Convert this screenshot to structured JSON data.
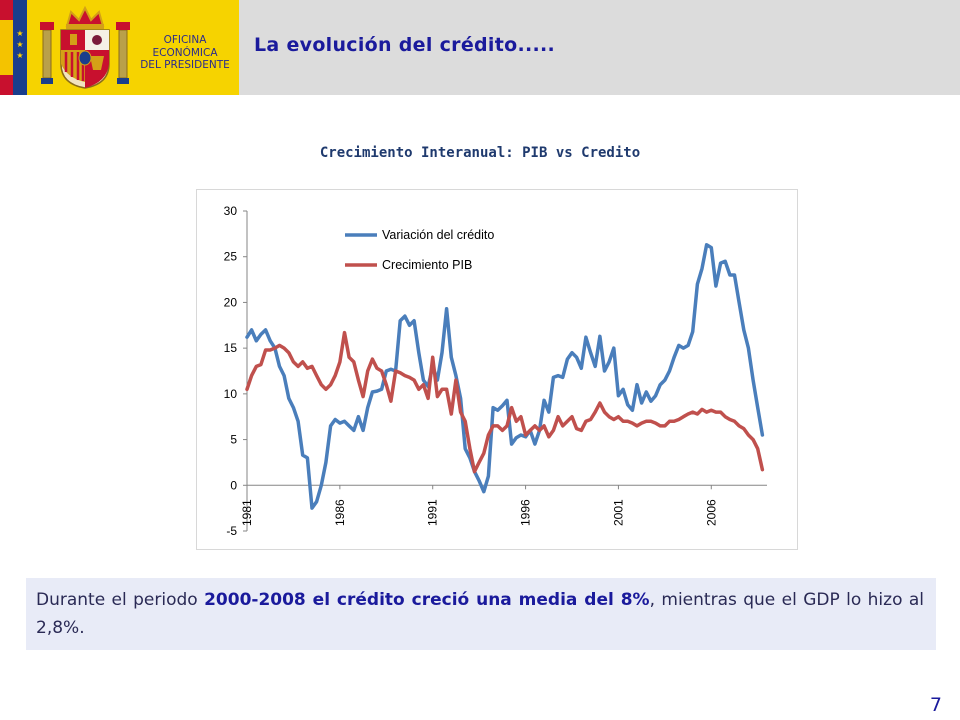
{
  "header": {
    "office_line1": "OFICINA",
    "office_line2": "ECONÓMICA",
    "office_line3": "DEL PRESIDENTE",
    "title": "La evolución del crédito.....",
    "logo": "spanish-coat-of-arms",
    "flag_colors": [
      "#c8102e",
      "#f4c300",
      "#c8102e"
    ],
    "eu_color": "#1a3e8c"
  },
  "chart_data": {
    "type": "line",
    "title": "Crecimiento Interanual: PIB vs Credito",
    "xlabel": "",
    "ylabel": "",
    "ylim": [
      -5,
      30
    ],
    "yticks": [
      30,
      25,
      20,
      15,
      10,
      5,
      0,
      -5
    ],
    "xticks": [
      "1981",
      "1986",
      "1991",
      "1996",
      "2001",
      "2006"
    ],
    "x_start": 1981,
    "x_end": 2009,
    "grid": false,
    "legend_position": "top-center",
    "series": [
      {
        "name": "Variación del crédito",
        "color": "#4a7ebb",
        "points": [
          [
            1981.0,
            16.2
          ],
          [
            1981.25,
            17.0
          ],
          [
            1981.5,
            15.8
          ],
          [
            1981.75,
            16.5
          ],
          [
            1982.0,
            17.0
          ],
          [
            1982.25,
            15.8
          ],
          [
            1982.5,
            15.0
          ],
          [
            1982.75,
            13.0
          ],
          [
            1983.0,
            12.0
          ],
          [
            1983.25,
            9.5
          ],
          [
            1983.5,
            8.5
          ],
          [
            1983.75,
            7.0
          ],
          [
            1984.0,
            3.3
          ],
          [
            1984.25,
            3.0
          ],
          [
            1984.5,
            -2.5
          ],
          [
            1984.75,
            -1.8
          ],
          [
            1985.0,
            0.0
          ],
          [
            1985.25,
            2.5
          ],
          [
            1985.5,
            6.5
          ],
          [
            1985.75,
            7.2
          ],
          [
            1986.0,
            6.8
          ],
          [
            1986.25,
            7.0
          ],
          [
            1986.5,
            6.5
          ],
          [
            1986.75,
            6.0
          ],
          [
            1987.0,
            7.5
          ],
          [
            1987.25,
            6.0
          ],
          [
            1987.5,
            8.5
          ],
          [
            1987.75,
            10.2
          ],
          [
            1988.0,
            10.3
          ],
          [
            1988.25,
            10.5
          ],
          [
            1988.5,
            12.5
          ],
          [
            1988.75,
            12.7
          ],
          [
            1989.0,
            12.5
          ],
          [
            1989.25,
            18.0
          ],
          [
            1989.5,
            18.5
          ],
          [
            1989.75,
            17.5
          ],
          [
            1990.0,
            18.0
          ],
          [
            1990.25,
            14.5
          ],
          [
            1990.5,
            11.5
          ],
          [
            1990.75,
            10.8
          ],
          [
            1991.0,
            13.0
          ],
          [
            1991.25,
            11.5
          ],
          [
            1991.5,
            14.5
          ],
          [
            1991.75,
            19.3
          ],
          [
            1992.0,
            14.0
          ],
          [
            1992.25,
            12.0
          ],
          [
            1992.5,
            9.5
          ],
          [
            1992.75,
            4.0
          ],
          [
            1993.0,
            3.0
          ],
          [
            1993.25,
            1.5
          ],
          [
            1993.5,
            0.5
          ],
          [
            1993.75,
            -0.7
          ],
          [
            1994.0,
            1.0
          ],
          [
            1994.25,
            8.5
          ],
          [
            1994.5,
            8.2
          ],
          [
            1994.75,
            8.7
          ],
          [
            1995.0,
            9.3
          ],
          [
            1995.25,
            4.5
          ],
          [
            1995.5,
            5.2
          ],
          [
            1995.75,
            5.5
          ],
          [
            1996.0,
            5.3
          ],
          [
            1996.25,
            6.0
          ],
          [
            1996.5,
            4.5
          ],
          [
            1996.75,
            6.0
          ],
          [
            1997.0,
            9.3
          ],
          [
            1997.25,
            8.0
          ],
          [
            1997.5,
            11.8
          ],
          [
            1997.75,
            12.0
          ],
          [
            1998.0,
            11.8
          ],
          [
            1998.25,
            13.8
          ],
          [
            1998.5,
            14.5
          ],
          [
            1998.75,
            14.0
          ],
          [
            1999.0,
            12.8
          ],
          [
            1999.25,
            16.2
          ],
          [
            1999.5,
            14.5
          ],
          [
            1999.75,
            13.0
          ],
          [
            2000.0,
            16.3
          ],
          [
            2000.25,
            12.5
          ],
          [
            2000.5,
            13.5
          ],
          [
            2000.75,
            15.0
          ],
          [
            2001.0,
            9.8
          ],
          [
            2001.25,
            10.5
          ],
          [
            2001.5,
            8.8
          ],
          [
            2001.75,
            8.2
          ],
          [
            2002.0,
            11.0
          ],
          [
            2002.25,
            9.0
          ],
          [
            2002.5,
            10.2
          ],
          [
            2002.75,
            9.2
          ],
          [
            2003.0,
            9.8
          ],
          [
            2003.25,
            11.0
          ],
          [
            2003.5,
            11.5
          ],
          [
            2003.75,
            12.5
          ],
          [
            2004.0,
            14.0
          ],
          [
            2004.25,
            15.3
          ],
          [
            2004.5,
            15.0
          ],
          [
            2004.75,
            15.3
          ],
          [
            2005.0,
            16.8
          ],
          [
            2005.25,
            22.0
          ],
          [
            2005.5,
            23.7
          ],
          [
            2005.75,
            26.3
          ],
          [
            2006.0,
            26.0
          ],
          [
            2006.25,
            21.8
          ],
          [
            2006.5,
            24.3
          ],
          [
            2006.75,
            24.5
          ],
          [
            2007.0,
            23.0
          ],
          [
            2007.25,
            23.0
          ],
          [
            2007.5,
            20.0
          ],
          [
            2007.75,
            17.0
          ],
          [
            2008.0,
            15.0
          ],
          [
            2008.25,
            11.5
          ],
          [
            2008.5,
            8.5
          ],
          [
            2008.75,
            5.5
          ]
        ]
      },
      {
        "name": "Crecimiento PIB",
        "color": "#c0504d",
        "points": [
          [
            1981.0,
            10.5
          ],
          [
            1981.25,
            12.0
          ],
          [
            1981.5,
            13.0
          ],
          [
            1981.75,
            13.2
          ],
          [
            1982.0,
            14.8
          ],
          [
            1982.25,
            14.8
          ],
          [
            1982.5,
            15.0
          ],
          [
            1982.75,
            15.3
          ],
          [
            1983.0,
            15.0
          ],
          [
            1983.25,
            14.5
          ],
          [
            1983.5,
            13.5
          ],
          [
            1983.75,
            13.0
          ],
          [
            1984.0,
            13.5
          ],
          [
            1984.25,
            12.8
          ],
          [
            1984.5,
            13.0
          ],
          [
            1984.75,
            12.0
          ],
          [
            1985.0,
            11.0
          ],
          [
            1985.25,
            10.5
          ],
          [
            1985.5,
            11.0
          ],
          [
            1985.75,
            12.0
          ],
          [
            1986.0,
            13.5
          ],
          [
            1986.25,
            16.7
          ],
          [
            1986.5,
            14.0
          ],
          [
            1986.75,
            13.5
          ],
          [
            1987.0,
            11.5
          ],
          [
            1987.25,
            9.7
          ],
          [
            1987.5,
            12.5
          ],
          [
            1987.75,
            13.8
          ],
          [
            1988.0,
            12.8
          ],
          [
            1988.25,
            12.5
          ],
          [
            1988.5,
            11.0
          ],
          [
            1988.75,
            9.2
          ],
          [
            1989.0,
            12.5
          ],
          [
            1989.25,
            12.3
          ],
          [
            1989.5,
            12.0
          ],
          [
            1989.75,
            11.8
          ],
          [
            1990.0,
            11.5
          ],
          [
            1990.25,
            10.5
          ],
          [
            1990.5,
            11.0
          ],
          [
            1990.75,
            9.5
          ],
          [
            1991.0,
            14.0
          ],
          [
            1991.25,
            9.7
          ],
          [
            1991.5,
            10.5
          ],
          [
            1991.75,
            10.5
          ],
          [
            1992.0,
            7.8
          ],
          [
            1992.25,
            11.5
          ],
          [
            1992.5,
            8.0
          ],
          [
            1992.75,
            7.0
          ],
          [
            1993.0,
            4.0
          ],
          [
            1993.25,
            1.5
          ],
          [
            1993.5,
            2.5
          ],
          [
            1993.75,
            3.5
          ],
          [
            1994.0,
            5.5
          ],
          [
            1994.25,
            6.5
          ],
          [
            1994.5,
            6.5
          ],
          [
            1994.75,
            6.0
          ],
          [
            1995.0,
            6.5
          ],
          [
            1995.25,
            8.5
          ],
          [
            1995.5,
            7.0
          ],
          [
            1995.75,
            7.5
          ],
          [
            1996.0,
            5.5
          ],
          [
            1996.25,
            6.0
          ],
          [
            1996.5,
            6.5
          ],
          [
            1996.75,
            6.0
          ],
          [
            1997.0,
            6.5
          ],
          [
            1997.25,
            5.3
          ],
          [
            1997.5,
            6.0
          ],
          [
            1997.75,
            7.5
          ],
          [
            1998.0,
            6.5
          ],
          [
            1998.25,
            7.0
          ],
          [
            1998.5,
            7.5
          ],
          [
            1998.75,
            6.2
          ],
          [
            1999.0,
            6.0
          ],
          [
            1999.25,
            7.0
          ],
          [
            1999.5,
            7.2
          ],
          [
            1999.75,
            8.0
          ],
          [
            2000.0,
            9.0
          ],
          [
            2000.25,
            8.0
          ],
          [
            2000.5,
            7.5
          ],
          [
            2000.75,
            7.2
          ],
          [
            2001.0,
            7.5
          ],
          [
            2001.25,
            7.0
          ],
          [
            2001.5,
            7.0
          ],
          [
            2001.75,
            6.8
          ],
          [
            2002.0,
            6.5
          ],
          [
            2002.25,
            6.8
          ],
          [
            2002.5,
            7.0
          ],
          [
            2002.75,
            7.0
          ],
          [
            2003.0,
            6.8
          ],
          [
            2003.25,
            6.5
          ],
          [
            2003.5,
            6.5
          ],
          [
            2003.75,
            7.0
          ],
          [
            2004.0,
            7.0
          ],
          [
            2004.25,
            7.2
          ],
          [
            2004.5,
            7.5
          ],
          [
            2004.75,
            7.8
          ],
          [
            2005.0,
            8.0
          ],
          [
            2005.25,
            7.8
          ],
          [
            2005.5,
            8.3
          ],
          [
            2005.75,
            8.0
          ],
          [
            2006.0,
            8.2
          ],
          [
            2006.25,
            8.0
          ],
          [
            2006.5,
            8.0
          ],
          [
            2006.75,
            7.5
          ],
          [
            2007.0,
            7.2
          ],
          [
            2007.25,
            7.0
          ],
          [
            2007.5,
            6.5
          ],
          [
            2007.75,
            6.2
          ],
          [
            2008.0,
            5.5
          ],
          [
            2008.25,
            5.0
          ],
          [
            2008.5,
            4.0
          ],
          [
            2008.75,
            1.7
          ]
        ]
      }
    ]
  },
  "note": {
    "part1": "Durante el periodo ",
    "bold": "2000-2008 el crédito creció una media del 8%",
    "part2": ", mientras que el GDP lo hizo al 2,8%."
  },
  "footer": {
    "page_number": "7"
  }
}
